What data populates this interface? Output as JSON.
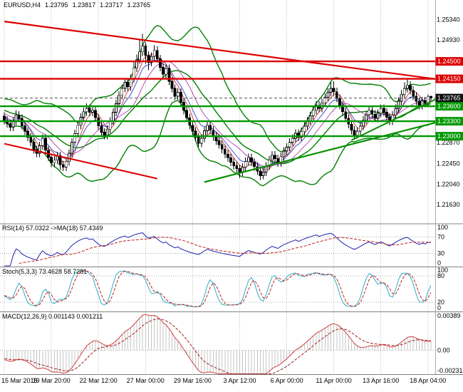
{
  "header": {
    "symbol_period": "EURUSD,H4",
    "open": "1.23795",
    "high": "1.23817",
    "low": "1.23717",
    "close": "1.23765"
  },
  "chart_data": {
    "type": "candlestick",
    "symbol": "EURUSD",
    "timeframe": "H4",
    "title": "EURUSD,H4 1.23795 1.23817 1.23717 1.23765",
    "current_price": 1.23765,
    "colors": {
      "background": "#ffffff",
      "bull_candle": "#ffffff",
      "bear_candle": "#000000",
      "candle_outline": "#000000",
      "bollinger": "#008000",
      "resistance": "#dd0000",
      "support": "#009900",
      "grid": "#b8b8b8",
      "current_price_badge": "#111111"
    },
    "x_axis": {
      "labels": [
        "15 Mar 2018",
        "19 Mar 20:00",
        "22 Mar 12:00",
        "27 Mar 00:00",
        "29 Mar 16:00",
        "3 Apr 12:00",
        "6 Apr 00:00",
        "11 Apr 00:00",
        "13 Apr 16:00",
        "18 Apr 04:00"
      ],
      "label_indices": [
        0,
        16,
        32,
        48,
        64,
        80,
        96,
        112,
        128,
        144
      ]
    },
    "y_axis": {
      "labels": [
        "1.25340",
        "1.24930",
        "1.22870",
        "1.22450",
        "1.22040",
        "1.21630"
      ],
      "badges": [
        {
          "text": "1.24500",
          "color": "#dd0000"
        },
        {
          "text": "1.24150",
          "color": "#dd0000"
        },
        {
          "text": "1.23765",
          "color": "#111111"
        },
        {
          "text": "1.23600",
          "color": "#009900"
        },
        {
          "text": "1.23300",
          "color": "#009900"
        },
        {
          "text": "1.23000",
          "color": "#009900"
        }
      ]
    },
    "levels": [
      {
        "name": "resistance-level-1",
        "price": 1.245,
        "color": "#dd0000"
      },
      {
        "name": "resistance-level-2",
        "price": 1.2415,
        "color": "#dd0000"
      },
      {
        "name": "support-level-1",
        "price": 1.236,
        "color": "#009900"
      },
      {
        "name": "support-level-2",
        "price": 1.233,
        "color": "#009900"
      },
      {
        "name": "support-level-3",
        "price": 1.23,
        "color": "#009900"
      }
    ],
    "trendlines": [
      {
        "name": "descending-resistance-trendline",
        "color": "#dd0000",
        "i1": 0,
        "p1": 1.253,
        "i2": 155,
        "p2": 1.2408,
        "width": 2.2
      },
      {
        "name": "descending-trendline-lower-left",
        "color": "#dd0000",
        "i1": 0,
        "p1": 1.2285,
        "i2": 52,
        "p2": 1.2215,
        "width": 2
      },
      {
        "name": "ascending-support-trendline",
        "color": "#089000",
        "i1": 68,
        "p1": 1.2208,
        "i2": 155,
        "p2": 1.234,
        "width": 2.2
      },
      {
        "name": "ascending-support-trendline-2",
        "color": "#089000",
        "i1": 118,
        "p1": 1.2292,
        "i2": 155,
        "p2": 1.2398,
        "width": 2
      }
    ],
    "overlays": {
      "bollinger": {
        "period": 20,
        "deviation": 2,
        "color": "#008000"
      },
      "moving_averages": [
        {
          "period": 5,
          "type": "sma",
          "color": "#d03030"
        },
        {
          "period": 8,
          "type": "ema",
          "color": "#3040d0"
        },
        {
          "period": 13,
          "type": "sma",
          "color": "#b040b0"
        }
      ]
    },
    "indicators": {
      "rsi": {
        "label": "RSI(14) 57.0322 ->MA(18) 57.4349",
        "period": 14,
        "applied_ma_period": 18,
        "value": 57.0322,
        "ma_value": 57.4349,
        "levels": [
          30,
          70
        ],
        "scale_labels": [
          "100",
          "70",
          "30",
          "0"
        ],
        "line_color": "#2020b0",
        "ma_color": "#c02020"
      },
      "stoch": {
        "label": "Stoch(5,3,3) 73.4628 58.7281",
        "k_period": 5,
        "d_period": 3,
        "slowing": 3,
        "k_value": 73.4628,
        "d_value": 58.7281,
        "levels": [
          20,
          80
        ],
        "scale_labels": [
          "100",
          "80",
          "20",
          "0"
        ],
        "k_color": "#2fadc8",
        "d_color": "#c02020"
      },
      "macd": {
        "label": "MACD(12,26,9) 0.001143 0.001211",
        "fast": 12,
        "slow": 26,
        "signal_period": 9,
        "value": 0.001143,
        "signal_value": 0.001211,
        "scale_labels": [
          "0.00389",
          "0.00",
          "-0.00231"
        ],
        "histogram_color": "#c4c4c4",
        "line_color": "#d04040",
        "signal_color": "#a02020"
      }
    },
    "candles": [
      [
        1.234,
        1.2348,
        1.2324,
        1.2332
      ],
      [
        1.2332,
        1.234,
        1.2317,
        1.2325
      ],
      [
        1.2325,
        1.2333,
        1.231,
        1.2318
      ],
      [
        1.2318,
        1.2338,
        1.231,
        1.233
      ],
      [
        1.233,
        1.2352,
        1.2322,
        1.2342
      ],
      [
        1.2342,
        1.235,
        1.2328,
        1.2336
      ],
      [
        1.2336,
        1.2344,
        1.2313,
        1.2321
      ],
      [
        1.2321,
        1.2329,
        1.2302,
        1.231
      ],
      [
        1.231,
        1.2318,
        1.229,
        1.2298
      ],
      [
        1.2298,
        1.2306,
        1.228,
        1.2288
      ],
      [
        1.2288,
        1.2296,
        1.2265,
        1.2273
      ],
      [
        1.2273,
        1.2281,
        1.2258,
        1.2266
      ],
      [
        1.2266,
        1.2289,
        1.2258,
        1.2281
      ],
      [
        1.2281,
        1.2304,
        1.2273,
        1.2296
      ],
      [
        1.2296,
        1.2304,
        1.2264,
        1.2272
      ],
      [
        1.2272,
        1.228,
        1.225,
        1.2258
      ],
      [
        1.2258,
        1.2266,
        1.2238,
        1.2247
      ],
      [
        1.2247,
        1.226,
        1.2239,
        1.2252
      ],
      [
        1.2252,
        1.2269,
        1.2244,
        1.2261
      ],
      [
        1.2261,
        1.2269,
        1.2232,
        1.2243
      ],
      [
        1.2243,
        1.2251,
        1.223,
        1.2238
      ],
      [
        1.2238,
        1.2257,
        1.223,
        1.2249
      ],
      [
        1.2249,
        1.2274,
        1.2241,
        1.2266
      ],
      [
        1.2266,
        1.2296,
        1.2258,
        1.2288
      ],
      [
        1.2288,
        1.2313,
        1.228,
        1.2305
      ],
      [
        1.2305,
        1.233,
        1.2297,
        1.2322
      ],
      [
        1.2322,
        1.2346,
        1.2314,
        1.2338
      ],
      [
        1.2338,
        1.2357,
        1.233,
        1.2349
      ],
      [
        1.2349,
        1.2366,
        1.2341,
        1.2356
      ],
      [
        1.2356,
        1.2364,
        1.234,
        1.2348
      ],
      [
        1.2348,
        1.236,
        1.234,
        1.2352
      ],
      [
        1.2352,
        1.236,
        1.2329,
        1.2337
      ],
      [
        1.2337,
        1.2345,
        1.2313,
        1.2321
      ],
      [
        1.2321,
        1.2329,
        1.23,
        1.2308
      ],
      [
        1.2308,
        1.2316,
        1.2294,
        1.2302
      ],
      [
        1.2302,
        1.2322,
        1.2294,
        1.2314
      ],
      [
        1.2314,
        1.2338,
        1.2306,
        1.233
      ],
      [
        1.233,
        1.2356,
        1.2322,
        1.2348
      ],
      [
        1.2348,
        1.2373,
        1.234,
        1.2365
      ],
      [
        1.2365,
        1.239,
        1.2357,
        1.2382
      ],
      [
        1.2382,
        1.2404,
        1.2374,
        1.2396
      ],
      [
        1.2396,
        1.2416,
        1.2388,
        1.2408
      ],
      [
        1.2408,
        1.2416,
        1.2391,
        1.2399
      ],
      [
        1.2399,
        1.2424,
        1.2391,
        1.2416
      ],
      [
        1.2416,
        1.245,
        1.2408,
        1.2437
      ],
      [
        1.2437,
        1.2464,
        1.2429,
        1.2453
      ],
      [
        1.2453,
        1.2492,
        1.2445,
        1.2469
      ],
      [
        1.2469,
        1.2505,
        1.2461,
        1.2481
      ],
      [
        1.2481,
        1.2488,
        1.2445,
        1.2462
      ],
      [
        1.2462,
        1.247,
        1.2432,
        1.2448
      ],
      [
        1.2448,
        1.2468,
        1.244,
        1.246
      ],
      [
        1.246,
        1.2482,
        1.2452,
        1.2472
      ],
      [
        1.2472,
        1.248,
        1.2447,
        1.2455
      ],
      [
        1.2455,
        1.2463,
        1.243,
        1.2438
      ],
      [
        1.2438,
        1.2446,
        1.2416,
        1.2424
      ],
      [
        1.2424,
        1.2444,
        1.2416,
        1.2436
      ],
      [
        1.2436,
        1.2444,
        1.2402,
        1.241
      ],
      [
        1.241,
        1.2418,
        1.2388,
        1.2396
      ],
      [
        1.2396,
        1.2404,
        1.2372,
        1.238
      ],
      [
        1.238,
        1.2396,
        1.2372,
        1.2388
      ],
      [
        1.2388,
        1.2396,
        1.236,
        1.2368
      ],
      [
        1.2368,
        1.2376,
        1.2344,
        1.2352
      ],
      [
        1.2352,
        1.236,
        1.2329,
        1.2337
      ],
      [
        1.2337,
        1.2345,
        1.2314,
        1.2322
      ],
      [
        1.2322,
        1.233,
        1.2302,
        1.231
      ],
      [
        1.231,
        1.2318,
        1.229,
        1.2298
      ],
      [
        1.2298,
        1.2306,
        1.2278,
        1.2286
      ],
      [
        1.2286,
        1.2304,
        1.2278,
        1.2296
      ],
      [
        1.2296,
        1.2319,
        1.2288,
        1.2311
      ],
      [
        1.2311,
        1.233,
        1.2303,
        1.2322
      ],
      [
        1.2322,
        1.233,
        1.2304,
        1.2312
      ],
      [
        1.2312,
        1.232,
        1.2291,
        1.2299
      ],
      [
        1.2299,
        1.2307,
        1.2283,
        1.2291
      ],
      [
        1.2291,
        1.2299,
        1.2275,
        1.2283
      ],
      [
        1.2283,
        1.2291,
        1.2266,
        1.2274
      ],
      [
        1.2274,
        1.2282,
        1.2256,
        1.2264
      ],
      [
        1.2264,
        1.2272,
        1.2249,
        1.2257
      ],
      [
        1.2257,
        1.2265,
        1.224,
        1.2248
      ],
      [
        1.2248,
        1.2256,
        1.2233,
        1.2241
      ],
      [
        1.2241,
        1.2249,
        1.2227,
        1.2235
      ],
      [
        1.2235,
        1.2243,
        1.2216,
        1.2228
      ],
      [
        1.2228,
        1.2246,
        1.222,
        1.2238
      ],
      [
        1.2238,
        1.2257,
        1.223,
        1.2249
      ],
      [
        1.2249,
        1.2265,
        1.2241,
        1.2257
      ],
      [
        1.2257,
        1.2265,
        1.224,
        1.2248
      ],
      [
        1.2248,
        1.2256,
        1.2231,
        1.2239
      ],
      [
        1.2239,
        1.2247,
        1.2222,
        1.223
      ],
      [
        1.223,
        1.2238,
        1.2212,
        1.2221
      ],
      [
        1.2221,
        1.2236,
        1.2214,
        1.2228
      ],
      [
        1.2228,
        1.2248,
        1.222,
        1.224
      ],
      [
        1.224,
        1.226,
        1.2232,
        1.2252
      ],
      [
        1.2252,
        1.227,
        1.2244,
        1.2262
      ],
      [
        1.2262,
        1.227,
        1.2247,
        1.2255
      ],
      [
        1.2255,
        1.2263,
        1.2239,
        1.2247
      ],
      [
        1.2247,
        1.2267,
        1.2239,
        1.2259
      ],
      [
        1.2259,
        1.2278,
        1.2251,
        1.227
      ],
      [
        1.227,
        1.2286,
        1.2262,
        1.2278
      ],
      [
        1.2278,
        1.2296,
        1.227,
        1.2288
      ],
      [
        1.2288,
        1.2304,
        1.228,
        1.2296
      ],
      [
        1.2296,
        1.2314,
        1.2288,
        1.2306
      ],
      [
        1.2306,
        1.2314,
        1.229,
        1.2298
      ],
      [
        1.2298,
        1.2317,
        1.229,
        1.2309
      ],
      [
        1.2309,
        1.2328,
        1.2301,
        1.232
      ],
      [
        1.232,
        1.2339,
        1.2312,
        1.2331
      ],
      [
        1.2331,
        1.2349,
        1.2323,
        1.2341
      ],
      [
        1.2341,
        1.236,
        1.2333,
        1.2352
      ],
      [
        1.2352,
        1.237,
        1.2344,
        1.2362
      ],
      [
        1.2362,
        1.237,
        1.2348,
        1.2356
      ],
      [
        1.2356,
        1.2375,
        1.2348,
        1.2367
      ],
      [
        1.2367,
        1.2386,
        1.2359,
        1.2378
      ],
      [
        1.2378,
        1.2396,
        1.237,
        1.2388
      ],
      [
        1.2388,
        1.2408,
        1.238,
        1.2396
      ],
      [
        1.2396,
        1.241,
        1.2381,
        1.2389
      ],
      [
        1.2389,
        1.2397,
        1.2368,
        1.2376
      ],
      [
        1.2376,
        1.2384,
        1.2354,
        1.2362
      ],
      [
        1.2362,
        1.237,
        1.2341,
        1.2349
      ],
      [
        1.2349,
        1.2357,
        1.2328,
        1.2336
      ],
      [
        1.2336,
        1.2344,
        1.2316,
        1.2324
      ],
      [
        1.2324,
        1.2332,
        1.2304,
        1.2312
      ],
      [
        1.2312,
        1.232,
        1.2293,
        1.2302
      ],
      [
        1.2302,
        1.2318,
        1.2295,
        1.231
      ],
      [
        1.231,
        1.2328,
        1.2302,
        1.232
      ],
      [
        1.232,
        1.234,
        1.2312,
        1.2332
      ],
      [
        1.2332,
        1.2351,
        1.2324,
        1.2343
      ],
      [
        1.2343,
        1.236,
        1.2335,
        1.2352
      ],
      [
        1.2352,
        1.236,
        1.2336,
        1.2344
      ],
      [
        1.2344,
        1.2352,
        1.2328,
        1.2336
      ],
      [
        1.2336,
        1.2354,
        1.2328,
        1.2346
      ],
      [
        1.2346,
        1.2364,
        1.2338,
        1.2356
      ],
      [
        1.2356,
        1.2364,
        1.234,
        1.2348
      ],
      [
        1.2348,
        1.2356,
        1.233,
        1.2338
      ],
      [
        1.2338,
        1.2346,
        1.2322,
        1.233
      ],
      [
        1.233,
        1.235,
        1.2322,
        1.2342
      ],
      [
        1.2342,
        1.2364,
        1.2334,
        1.2356
      ],
      [
        1.2356,
        1.2378,
        1.2348,
        1.237
      ],
      [
        1.237,
        1.2392,
        1.2362,
        1.2384
      ],
      [
        1.2384,
        1.2408,
        1.2376,
        1.2396
      ],
      [
        1.2396,
        1.2415,
        1.2388,
        1.2402
      ],
      [
        1.2402,
        1.241,
        1.2384,
        1.2392
      ],
      [
        1.2392,
        1.24,
        1.2372,
        1.238
      ],
      [
        1.238,
        1.2388,
        1.2362,
        1.237
      ],
      [
        1.237,
        1.2378,
        1.2354,
        1.2362
      ],
      [
        1.2362,
        1.2379,
        1.2354,
        1.2371
      ],
      [
        1.2371,
        1.2379,
        1.2358,
        1.2366
      ],
      [
        1.2366,
        1.2384,
        1.2358,
        1.2379
      ],
      [
        1.23795,
        1.23817,
        1.23717,
        1.23765
      ]
    ]
  }
}
